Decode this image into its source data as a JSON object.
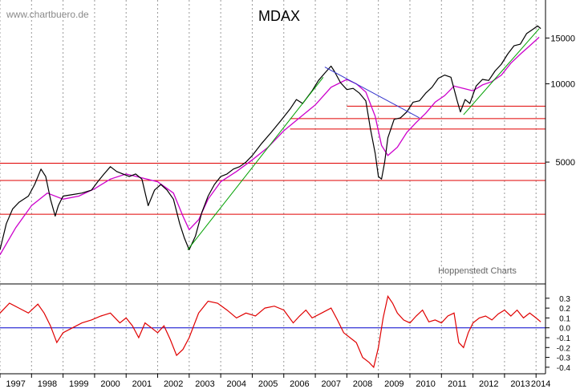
{
  "watermark": "www.chartbuero.de",
  "credit": "Hoppenstedt Charts",
  "colors": {
    "price": "#000000",
    "moving_average": "#cc00cc",
    "uptrend": "#00a000",
    "downtrend": "#3333cc",
    "support": "#e00000",
    "oscillator": "#e00000",
    "zero_line": "#0000cc",
    "grid": "#999999"
  },
  "chart_data": [
    {
      "type": "line",
      "title": "MDAX",
      "scale": "log",
      "ylim": [
        1700,
        21000
      ],
      "y_ticks": [
        5000,
        10000,
        15000
      ],
      "x_range": [
        1997.0,
        2014.3
      ],
      "x_ticks": [
        "1997",
        "1998",
        "1999",
        "2000",
        "2001",
        "2002",
        "2003",
        "2004",
        "2005",
        "2006",
        "2007",
        "2008",
        "2009",
        "2010",
        "2011",
        "2012",
        "2013",
        "2014"
      ],
      "grid": "vertical dotted",
      "series": [
        {
          "role": "price",
          "x": [
            1997.0,
            1997.2,
            1997.4,
            1997.6,
            1997.9,
            1998.1,
            1998.3,
            1998.45,
            1998.6,
            1998.75,
            1998.85,
            1999.0,
            1999.3,
            1999.6,
            1999.9,
            2000.1,
            2000.3,
            2000.5,
            2000.7,
            2000.9,
            2001.1,
            2001.3,
            2001.5,
            2001.7,
            2001.9,
            2002.1,
            2002.3,
            2002.5,
            2002.7,
            2002.85,
            2003.0,
            2003.2,
            2003.4,
            2003.6,
            2003.8,
            2004.0,
            2004.2,
            2004.4,
            2004.6,
            2004.8,
            2005.0,
            2005.3,
            2005.6,
            2005.9,
            2006.2,
            2006.4,
            2006.6,
            2006.9,
            2007.1,
            2007.3,
            2007.5,
            2007.6,
            2007.8,
            2008.0,
            2008.2,
            2008.4,
            2008.6,
            2008.75,
            2008.9,
            2009.0,
            2009.1,
            2009.2,
            2009.3,
            2009.5,
            2009.7,
            2009.9,
            2010.1,
            2010.3,
            2010.5,
            2010.7,
            2010.9,
            2011.1,
            2011.3,
            2011.5,
            2011.6,
            2011.75,
            2011.9,
            2012.1,
            2012.3,
            2012.5,
            2012.7,
            2012.9,
            2013.1,
            2013.3,
            2013.5,
            2013.7,
            2013.9,
            2014.05,
            2014.15
          ],
          "y": [
            2300,
            2900,
            3300,
            3500,
            3700,
            4100,
            4700,
            4400,
            3600,
            3100,
            3400,
            3700,
            3750,
            3800,
            3900,
            4200,
            4500,
            4800,
            4600,
            4500,
            4400,
            4500,
            4300,
            3400,
            3900,
            4100,
            3900,
            3600,
            2900,
            2550,
            2300,
            2600,
            3200,
            3700,
            4100,
            4400,
            4500,
            4700,
            4800,
            5000,
            5300,
            5900,
            6500,
            7200,
            8000,
            8700,
            8400,
            9400,
            10300,
            11000,
            11700,
            11200,
            10100,
            9500,
            9600,
            9200,
            8600,
            6700,
            5400,
            4400,
            4300,
            5000,
            6200,
            7300,
            7400,
            7800,
            8500,
            8600,
            9200,
            9700,
            10500,
            10800,
            10600,
            8600,
            7800,
            8700,
            8400,
            9800,
            10400,
            10300,
            11200,
            11900,
            13000,
            14000,
            14200,
            15600,
            16200,
            16700,
            16300
          ]
        },
        {
          "role": "moving average",
          "x": [
            1997.0,
            1997.5,
            1998.0,
            1998.5,
            1999.0,
            1999.5,
            2000.0,
            2000.5,
            2001.0,
            2001.5,
            2002.0,
            2002.5,
            2002.8,
            2003.0,
            2003.3,
            2003.6,
            2004.0,
            2004.5,
            2005.0,
            2005.5,
            2006.0,
            2006.5,
            2007.0,
            2007.5,
            2008.0,
            2008.3,
            2008.6,
            2008.9,
            2009.1,
            2009.3,
            2009.6,
            2009.9,
            2010.2,
            2010.5,
            2010.8,
            2011.1,
            2011.4,
            2011.7,
            2012.0,
            2012.3,
            2012.6,
            2012.9,
            2013.2,
            2013.5,
            2013.8,
            2014.1
          ],
          "y": [
            2200,
            2800,
            3400,
            3800,
            3600,
            3700,
            3950,
            4300,
            4500,
            4350,
            4200,
            3800,
            3100,
            2750,
            3000,
            3600,
            4200,
            4600,
            5100,
            5700,
            6600,
            7400,
            8300,
            9700,
            10400,
            10000,
            9300,
            7500,
            5800,
            5300,
            5700,
            6500,
            7100,
            7700,
            8500,
            9000,
            9800,
            9600,
            9400,
            9900,
            10200,
            10800,
            12000,
            13000,
            14000,
            15100
          ]
        },
        {
          "role": "uptrend line 2003-2007",
          "x": [
            2002.95,
            2007.25
          ],
          "y": [
            2300,
            10600
          ]
        },
        {
          "role": "downtrend line 2007-2010",
          "x": [
            2007.3,
            2010.3
          ],
          "y": [
            11600,
            7400
          ]
        },
        {
          "role": "uptrend line 2011-2014",
          "x": [
            2011.7,
            2014.1
          ],
          "y": [
            7600,
            16300
          ]
        }
      ],
      "horizontal_lines": [
        {
          "y": 3150,
          "x_start": 1997.0,
          "x_end": 2014.3
        },
        {
          "y": 4250,
          "x_start": 1997.0,
          "x_end": 2014.3
        },
        {
          "y": 4950,
          "x_start": 1997.0,
          "x_end": 2014.3
        },
        {
          "y": 6700,
          "x_start": 2006.2,
          "x_end": 2014.3
        },
        {
          "y": 7350,
          "x_start": 2006.2,
          "x_end": 2014.3
        },
        {
          "y": 8200,
          "x_start": 2008.0,
          "x_end": 2014.3
        }
      ]
    },
    {
      "type": "line",
      "ylim": [
        -0.45,
        0.38
      ],
      "y_ticks": [
        "0.3",
        "0.2",
        "0.1",
        "0.0",
        "-0.1",
        "-0.2",
        "-0.3",
        "-0.4"
      ],
      "x_range": [
        1997.0,
        2014.3
      ],
      "x_ticks": [
        "1997",
        "1998",
        "1999",
        "2000",
        "2001",
        "2002",
        "2003",
        "2004",
        "2005",
        "2006",
        "2007",
        "2008",
        "2009",
        "2010",
        "2011",
        "2012",
        "2013",
        "2014"
      ],
      "series": [
        {
          "role": "oscillator",
          "x": [
            1997.0,
            1997.3,
            1997.6,
            1997.9,
            1998.2,
            1998.4,
            1998.6,
            1998.8,
            1999.0,
            1999.3,
            1999.6,
            1999.9,
            2000.2,
            2000.5,
            2000.8,
            2001.0,
            2001.2,
            2001.4,
            2001.6,
            2001.8,
            2002.0,
            2002.2,
            2002.4,
            2002.6,
            2002.8,
            2003.0,
            2003.3,
            2003.6,
            2003.9,
            2004.2,
            2004.5,
            2004.8,
            2005.1,
            2005.4,
            2005.7,
            2006.0,
            2006.3,
            2006.5,
            2006.7,
            2006.9,
            2007.2,
            2007.5,
            2007.7,
            2007.9,
            2008.1,
            2008.3,
            2008.5,
            2008.7,
            2008.85,
            2009.0,
            2009.15,
            2009.3,
            2009.45,
            2009.6,
            2009.8,
            2010.0,
            2010.2,
            2010.4,
            2010.6,
            2010.8,
            2011.0,
            2011.2,
            2011.4,
            2011.55,
            2011.7,
            2011.85,
            2012.0,
            2012.2,
            2012.4,
            2012.6,
            2012.8,
            2013.0,
            2013.2,
            2013.4,
            2013.6,
            2013.8,
            2014.0,
            2014.15
          ],
          "y": [
            0.15,
            0.25,
            0.2,
            0.15,
            0.24,
            0.15,
            0.02,
            -0.15,
            -0.05,
            0.0,
            0.05,
            0.08,
            0.12,
            0.15,
            0.05,
            0.1,
            0.02,
            -0.1,
            0.05,
            0.0,
            -0.05,
            0.02,
            -0.12,
            -0.28,
            -0.22,
            -0.1,
            0.15,
            0.27,
            0.25,
            0.18,
            0.1,
            0.15,
            0.12,
            0.2,
            0.22,
            0.18,
            0.05,
            0.12,
            0.18,
            0.1,
            0.15,
            0.2,
            0.08,
            -0.05,
            -0.1,
            -0.15,
            -0.3,
            -0.35,
            -0.4,
            -0.2,
            0.1,
            0.32,
            0.25,
            0.15,
            0.08,
            0.05,
            0.12,
            0.18,
            0.06,
            0.08,
            0.05,
            0.12,
            0.15,
            -0.15,
            -0.2,
            -0.05,
            0.05,
            0.1,
            0.12,
            0.08,
            0.14,
            0.18,
            0.12,
            0.18,
            0.1,
            0.15,
            0.1,
            0.06
          ]
        }
      ]
    }
  ]
}
